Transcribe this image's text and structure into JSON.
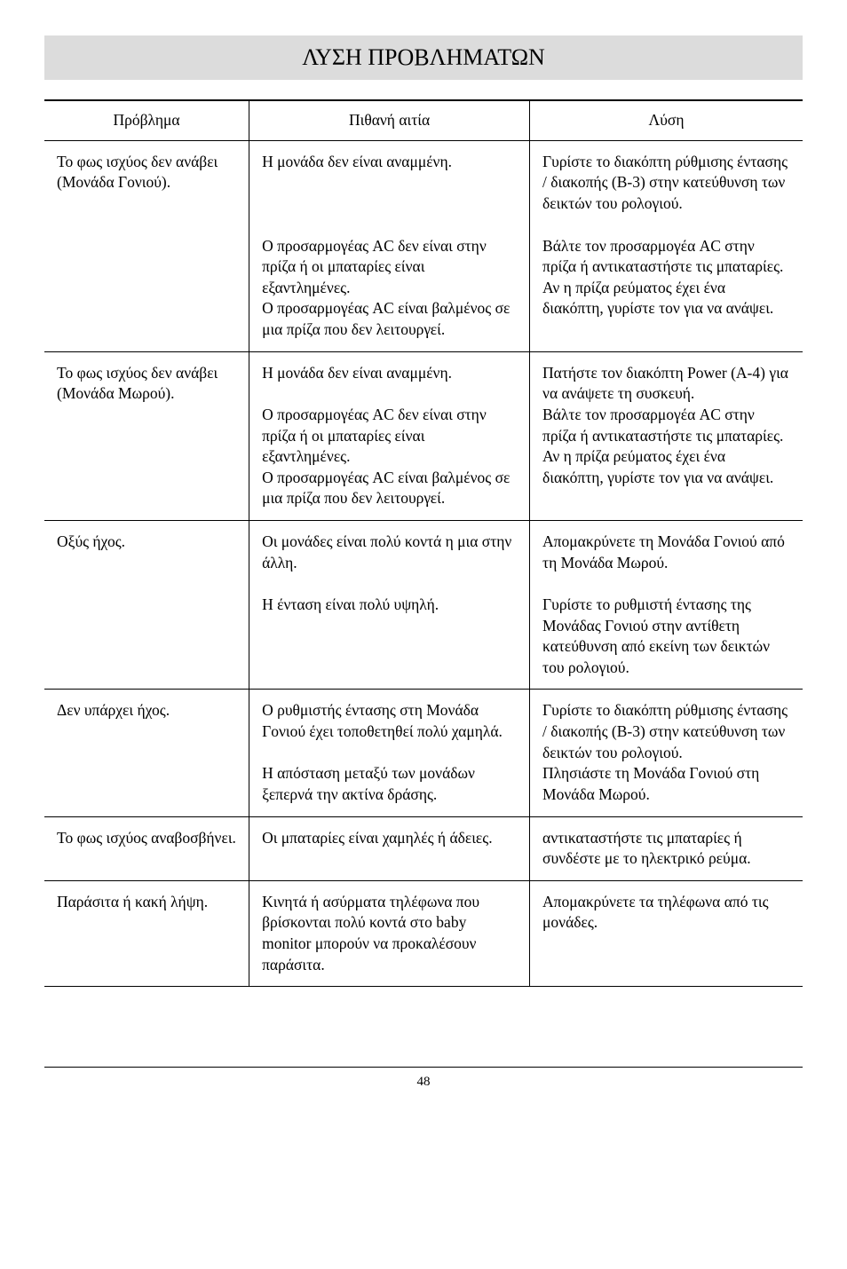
{
  "title": "ΛΥΣΗ ΠΡΟΒΛΗΜΑΤΩΝ",
  "headers": {
    "problem": "Πρόβλημα",
    "cause": "Πιθανή αιτία",
    "solution": "Λύση"
  },
  "rows": [
    {
      "problem": "Το φως ισχύος δεν ανάβει (Μονάδα Γονιού).",
      "cause": "Η μονάδα δεν είναι αναμμένη.",
      "solution": "Γυρίστε το διακόπτη ρύθμισης έντασης / διακοπής (B-3) στην κατεύθυνση των δεικτών του ρολογιού.",
      "continues": true
    },
    {
      "problem": "",
      "cause": "Ο προσαρμογέας AC δεν είναι στην πρίζα ή οι μπαταρίες είναι εξαντλημένες.\nΟ προσαρμογέας AC είναι βαλμένος σε μια πρίζα που δεν λειτουργεί.",
      "solution": "Βάλτε τον προσαρμογέα AC στην πρίζα ή αντικαταστήστε τις μπαταρίες.\nΑν η πρίζα ρεύματος έχει ένα διακόπτη, γυρίστε τον για να ανάψει.",
      "continues": false
    },
    {
      "problem": "Το φως ισχύος δεν ανάβει (Μονάδα Μωρού).",
      "cause": "Η μονάδα δεν είναι αναμμένη.\n\nΟ προσαρμογέας AC δεν είναι στην πρίζα ή οι μπαταρίες είναι εξαντλημένες.\nΟ προσαρμογέας AC είναι βαλμένος σε μια πρίζα που δεν λειτουργεί.",
      "solution": "Πατήστε τον διακόπτη Power (A-4) για να ανάψετε τη συσκευή.\nΒάλτε τον προσαρμογέα AC στην πρίζα ή αντικαταστήστε τις μπαταρίες.\nΑν η πρίζα ρεύματος έχει ένα διακόπτη, γυρίστε τον για να ανάψει.",
      "continues": false
    },
    {
      "problem": "Οξύς ήχος.",
      "cause": "Οι μονάδες είναι πολύ κοντά η μια στην άλλη.\n\nΗ ένταση είναι πολύ υψηλή.",
      "solution": "Απομακρύνετε τη Μονάδα Γονιού από τη Μονάδα Μωρού.\n\nΓυρίστε το ρυθμιστή έντασης της Μονάδας Γονιού στην αντίθετη κατεύθυνση από εκείνη των δεικτών του ρολογιού.\n",
      "continues": false
    },
    {
      "problem": "Δεν υπάρχει ήχος.",
      "cause": "Ο ρυθμιστής έντασης στη Μονάδα Γονιού έχει τοποθετηθεί πολύ χαμηλά.\n\nΗ απόσταση μεταξύ των μονάδων ξεπερνά την ακτίνα δράσης.\n",
      "solution": "Γυρίστε το διακόπτη ρύθμισης έντασης / διακοπής (B-3) στην κατεύθυνση των δεικτών του ρολογιού.\nΠλησιάστε τη Μονάδα Γονιού στη Μονάδα Μωρού.\n",
      "continues": false
    },
    {
      "problem": "Το φως ισχύος αναβοσβήνει.",
      "cause": "Οι μπαταρίες είναι χαμηλές ή άδειες.\n",
      "solution": "αντικαταστήστε τις μπαταρίες ή συνδέστε με το ηλεκτρικό ρεύμα.\n",
      "continues": false
    },
    {
      "problem": "Παράσιτα ή κακή λήψη.",
      "cause": "Κινητά ή ασύρματα τηλέφωνα που βρίσκονται πολύ κοντά στο baby monitor μπορούν να προκαλέσουν παράσιτα.",
      "solution": "Απομακρύνετε τα τηλέφωνα από τις μονάδες.",
      "continues": false
    }
  ],
  "page_number": "48",
  "style": {
    "title_bg": "#dcdcdc",
    "title_fontsize": 26,
    "body_fontsize": 17.5,
    "footer_fontsize": 15
  }
}
